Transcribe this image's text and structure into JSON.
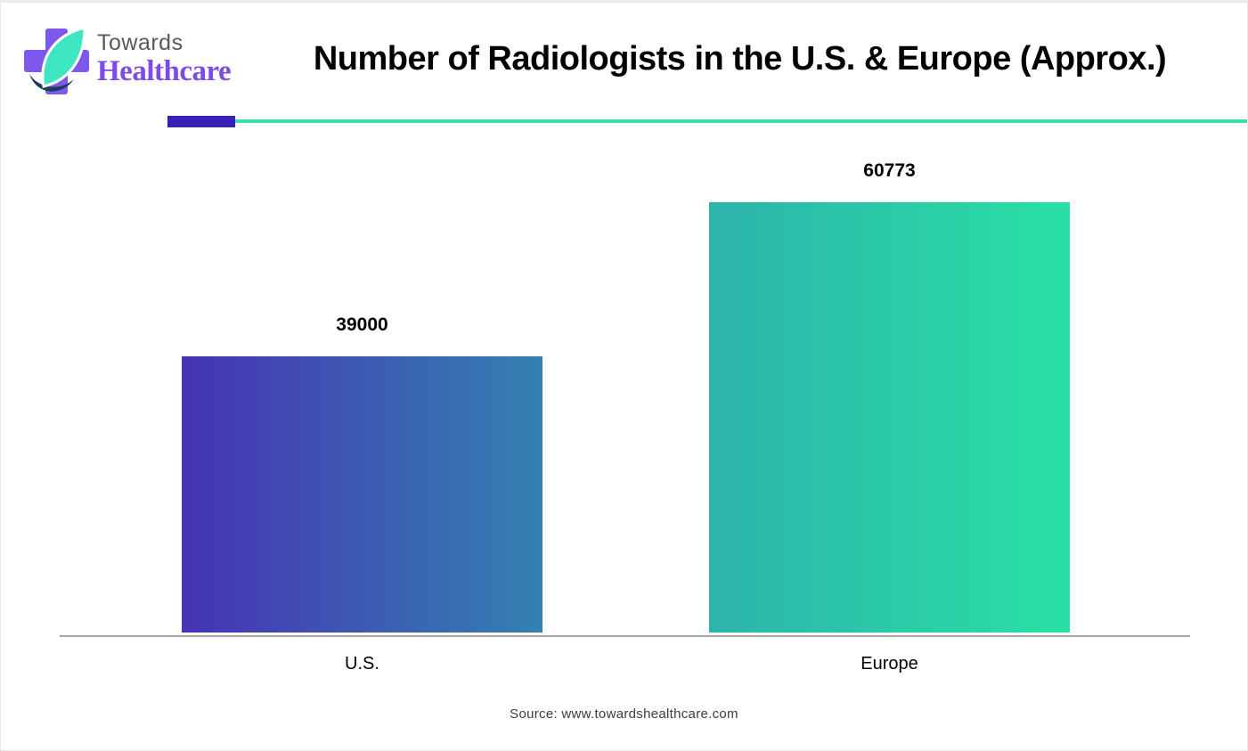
{
  "logo": {
    "line1": "Towards",
    "line2": "Healthcare",
    "line1_color": "#595959",
    "line2_color": "#7c4be8",
    "cross_color": "#7e57ec",
    "leaf_color": "#3fe6c2",
    "leaf_dark_color": "#1d3d5c"
  },
  "header": {
    "title": "Number of Radiologists in the U.S. & Europe (Approx.)",
    "title_color": "#000000"
  },
  "divider": {
    "accent_color": "#391eb7",
    "line_color": "#3ddcab"
  },
  "chart_data": {
    "type": "bar",
    "title": "Number of Radiologists in the U.S. & Europe (Approx.)",
    "categories": [
      "U.S.",
      "Europe"
    ],
    "values": [
      39000,
      60773
    ],
    "xlabel": "",
    "ylabel": "",
    "ylim": [
      0,
      61500
    ],
    "grid": false,
    "legend": false,
    "value_label_color": "#000000",
    "axis_line_color": "#a6a6a6",
    "bar_gradients": [
      {
        "from": "#4633b3",
        "to": "#3381b1"
      },
      {
        "from": "#2cb4ab",
        "to": "#29e0a4"
      }
    ]
  },
  "footer": {
    "source": "Source: www.towardshealthcare.com",
    "source_color": "#3d3d3d"
  }
}
